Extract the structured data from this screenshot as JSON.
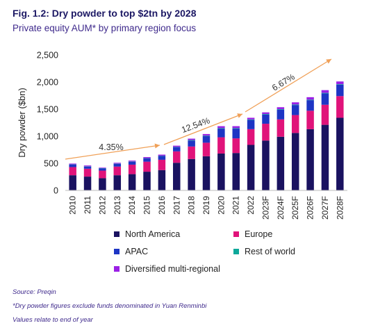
{
  "header": {
    "title": "Fig. 1.2: Dry powder to top $2tn by 2028",
    "subtitle": "Private equity AUM* by primary region focus"
  },
  "chart_data": {
    "type": "bar",
    "stacked": true,
    "ylabel": "Dry powder ($bn)",
    "ylim": [
      0,
      2500
    ],
    "yticks": [
      0,
      500,
      1000,
      1500,
      2000,
      2500
    ],
    "ytick_labels": [
      "0",
      "500",
      "1,000",
      "1,500",
      "2,000",
      "2,500"
    ],
    "categories": [
      "2010",
      "2011",
      "2012",
      "2013",
      "2014",
      "2015",
      "2016",
      "2017",
      "2018",
      "2019",
      "2020",
      "2021",
      "2022",
      "2023F",
      "2024F",
      "2025F",
      "2026F",
      "2027F",
      "2028F"
    ],
    "series": [
      {
        "name": "North America",
        "color": "#1a1260",
        "values": [
          280,
          255,
          225,
          280,
          300,
          345,
          375,
          510,
          580,
          630,
          680,
          690,
          840,
          920,
          990,
          1060,
          1130,
          1210,
          1340
        ]
      },
      {
        "name": "Europe",
        "color": "#e0137a",
        "values": [
          150,
          145,
          140,
          160,
          175,
          185,
          190,
          210,
          230,
          250,
          300,
          270,
          290,
          310,
          320,
          330,
          340,
          370,
          400
        ]
      },
      {
        "name": "APAC",
        "color": "#1d35c4",
        "values": [
          45,
          40,
          40,
          50,
          55,
          60,
          70,
          80,
          110,
          120,
          160,
          180,
          170,
          170,
          180,
          185,
          195,
          210,
          210
        ]
      },
      {
        "name": "Rest of world",
        "color": "#0ea89a",
        "values": [
          5,
          5,
          5,
          5,
          5,
          5,
          5,
          5,
          10,
          10,
          10,
          10,
          10,
          10,
          10,
          10,
          10,
          10,
          10
        ]
      },
      {
        "name": "Diversified multi-regional",
        "color": "#9b20e6",
        "values": [
          15,
          15,
          10,
          15,
          15,
          20,
          20,
          20,
          25,
          30,
          35,
          35,
          30,
          30,
          35,
          40,
          45,
          50,
          50
        ]
      }
    ],
    "annotations": [
      "4.35%",
      "12.54%",
      "6.67%"
    ],
    "legend_position": "bottom"
  },
  "footer": {
    "source": "Source: Preqin",
    "note1": "*Dry powder figures exclude funds denominated in Yuan Renminbi",
    "note2": "Values relate to end of year"
  }
}
